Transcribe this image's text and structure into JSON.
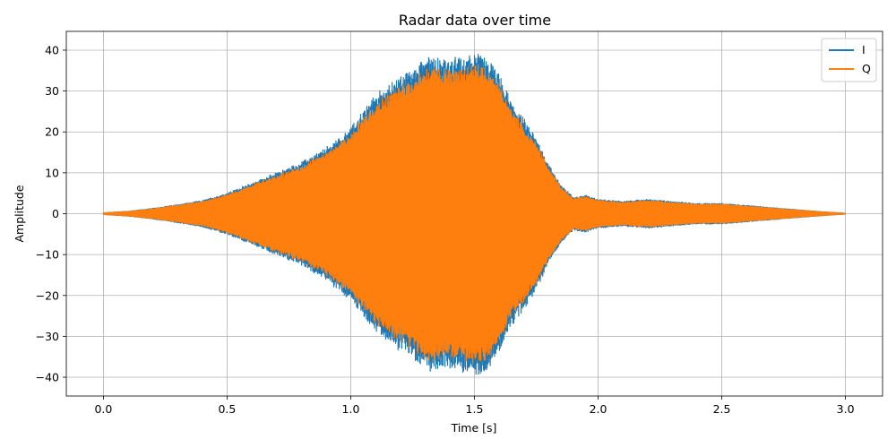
{
  "chart_data": {
    "type": "line",
    "title": "Radar data over time",
    "xlabel": "Time [s]",
    "ylabel": "Amplitude",
    "xlim": [
      -0.15,
      3.15
    ],
    "ylim": [
      -44.6,
      44.6
    ],
    "xticks": [
      0.0,
      0.5,
      1.0,
      1.5,
      2.0,
      2.5,
      3.0
    ],
    "xtick_labels": [
      "0.0",
      "0.5",
      "1.0",
      "1.5",
      "2.0",
      "2.5",
      "3.0"
    ],
    "yticks": [
      -40,
      -30,
      -20,
      -10,
      0,
      10,
      20,
      30,
      40
    ],
    "ytick_labels": [
      "−40",
      "−30",
      "−20",
      "−10",
      "0",
      "10",
      "20",
      "30",
      "40"
    ],
    "grid": true,
    "legend_position": "top-right",
    "envelope": {
      "t": [
        0.0,
        0.1,
        0.2,
        0.3,
        0.4,
        0.5,
        0.6,
        0.7,
        0.8,
        0.9,
        1.0,
        1.05,
        1.1,
        1.15,
        1.2,
        1.25,
        1.3,
        1.35,
        1.4,
        1.45,
        1.5,
        1.55,
        1.6,
        1.65,
        1.7,
        1.75,
        1.8,
        1.85,
        1.9,
        1.95,
        2.0,
        2.1,
        2.2,
        2.3,
        2.4,
        2.5,
        2.6,
        2.7,
        2.8,
        2.9,
        3.0
      ],
      "amplitude": [
        0.2,
        0.6,
        1.3,
        2.2,
        3.2,
        5.0,
        7.5,
        10.0,
        12.5,
        16.0,
        21.0,
        25.0,
        29.0,
        31.0,
        33.5,
        35.0,
        38.5,
        38.0,
        37.5,
        38.0,
        39.5,
        38.0,
        34.0,
        27.0,
        23.0,
        18.5,
        12.0,
        7.0,
        4.0,
        4.5,
        3.5,
        3.0,
        3.5,
        3.0,
        2.5,
        2.5,
        2.0,
        1.5,
        1.0,
        0.5,
        0.1
      ]
    },
    "series": [
      {
        "name": "I",
        "color": "#1f77b4"
      },
      {
        "name": "Q",
        "color": "#ff7f0e"
      }
    ]
  }
}
